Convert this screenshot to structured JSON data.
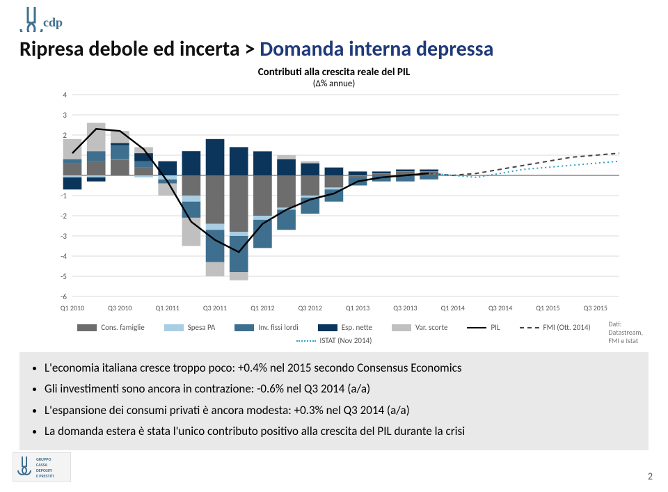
{
  "title_dark": "Ripresa debole ed incerta > ",
  "title_blue": "Domanda interna depressa",
  "chart": {
    "title": "Contributi alla crescita reale del PIL",
    "subtitle": "(Δ% annue)",
    "y": {
      "min": -6,
      "max": 4,
      "ticks": [
        -6,
        -5,
        -4,
        -3,
        -2,
        -1,
        0,
        1,
        2,
        3,
        4
      ]
    },
    "x_labels": [
      "Q1 2010",
      "Q3 2010",
      "Q1 2011",
      "Q3 2011",
      "Q1 2012",
      "Q3 2012",
      "Q1 2013",
      "Q3 2013",
      "Q1 2014",
      "Q3 2014",
      "Q1 2015",
      "Q3 2015"
    ],
    "colors": {
      "cons": "#6d6d6d",
      "var_scorte": "#c0c0c0",
      "spesa_pa": "#a9cde3",
      "inv": "#3e6f8e",
      "esp": "#0b355a",
      "pil": "#000000",
      "fmi": "#444444",
      "istat": "#2aa0cc",
      "grid": "#d9d9d9",
      "zero": "#888888",
      "axis_text": "#555555",
      "chart_bg": "#ffffff"
    },
    "series": {
      "cons": [
        0.6,
        0.7,
        0.8,
        0.4,
        0.0,
        -1.0,
        -2.4,
        -2.8,
        -2.0,
        -1.6,
        -1.0,
        -0.6,
        -0.1,
        0.1,
        0.2,
        0.2
      ],
      "spesa_pa": [
        -0.1,
        -0.1,
        0.0,
        -0.1,
        -0.2,
        -0.3,
        -0.3,
        -0.2,
        -0.2,
        -0.1,
        -0.1,
        -0.1,
        0.0,
        0.0,
        0.0,
        0.0
      ],
      "inv": [
        0.2,
        0.5,
        0.7,
        0.3,
        -0.2,
        -0.8,
        -1.6,
        -1.8,
        -1.4,
        -1.0,
        -0.8,
        -0.6,
        -0.4,
        -0.3,
        -0.3,
        -0.2
      ],
      "esp": [
        -0.6,
        -0.2,
        0.1,
        0.4,
        0.7,
        1.2,
        1.8,
        1.4,
        1.2,
        0.8,
        0.6,
        0.4,
        0.2,
        0.1,
        0.1,
        0.1
      ],
      "var_scorte": [
        1.0,
        1.4,
        0.6,
        0.3,
        -0.6,
        -1.4,
        -0.7,
        -0.4,
        0.0,
        0.2,
        0.1,
        0.0,
        0.0,
        0.0,
        0.0,
        0.0
      ]
    },
    "pil": [
      1.1,
      2.3,
      2.2,
      1.3,
      -0.3,
      -2.3,
      -3.2,
      -3.8,
      -2.4,
      -1.7,
      -1.2,
      -0.9,
      -0.3,
      -0.1,
      0.0,
      0.1
    ],
    "fmi_forecast": [
      0.0,
      0.1,
      0.3,
      0.5,
      0.7,
      0.9,
      1.0,
      1.1
    ],
    "istat_forecast": [
      0.0,
      -0.1,
      0.1,
      0.3,
      0.4,
      0.5,
      0.6,
      0.7
    ],
    "legend": {
      "cons": "Cons. famiglie",
      "var_scorte": "Var. scorte",
      "spesa_pa": "Spesa PA",
      "pil": "PIL",
      "inv": "Inv. fissi lordi",
      "fmi": "FMI (Ott. 2014)",
      "esp": "Esp. nette",
      "istat": "ISTAT (Nov 2014)"
    },
    "source": "Dati:\nDatastream,\nFMI e Istat"
  },
  "bullets": [
    "L'economia italiana cresce troppo poco: +0.4% nel 2015 secondo Consensus Economics",
    "Gli investimenti sono ancora in contrazione: -0.6% nel Q3 2014 (a/a)",
    "L'espansione dei consumi privati è ancora modesta: +0.3% nel Q3 2014 (a/a)",
    "La domanda estera è stata l'unico contributo positivo alla crescita del PIL durante la crisi"
  ],
  "page": "2",
  "logo_top": "cdp",
  "logo_bottom": "GRUPPO\nCASSA\nDEPOSITI\nE PRESTITI"
}
